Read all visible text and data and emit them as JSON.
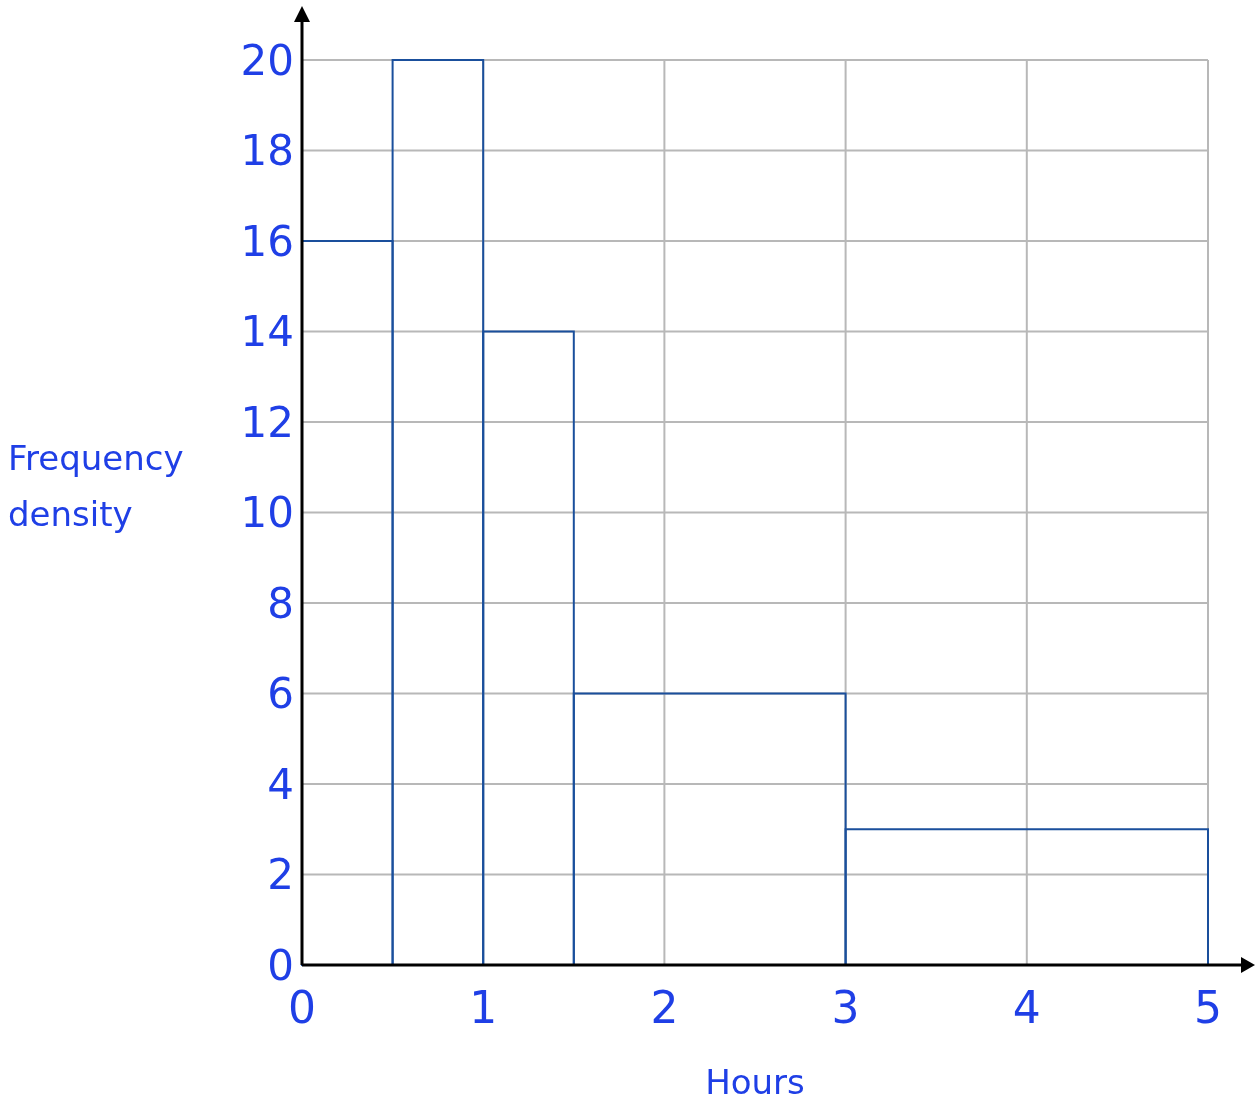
{
  "chart_data": {
    "type": "histogram",
    "xlabel": "Hours",
    "ylabel": "Frequency density",
    "bins": [
      0,
      0.5,
      1,
      1.5,
      3,
      5
    ],
    "values": [
      16,
      20,
      14,
      6,
      3
    ],
    "color": "#1a4f9c",
    "xlim": [
      0,
      5
    ],
    "ylim": [
      0,
      20
    ],
    "xticks": [
      0,
      1,
      2,
      3,
      4,
      5
    ],
    "yticks": [
      0,
      2,
      4,
      6,
      8,
      10,
      12,
      14,
      16,
      18,
      20
    ],
    "grid": true
  }
}
